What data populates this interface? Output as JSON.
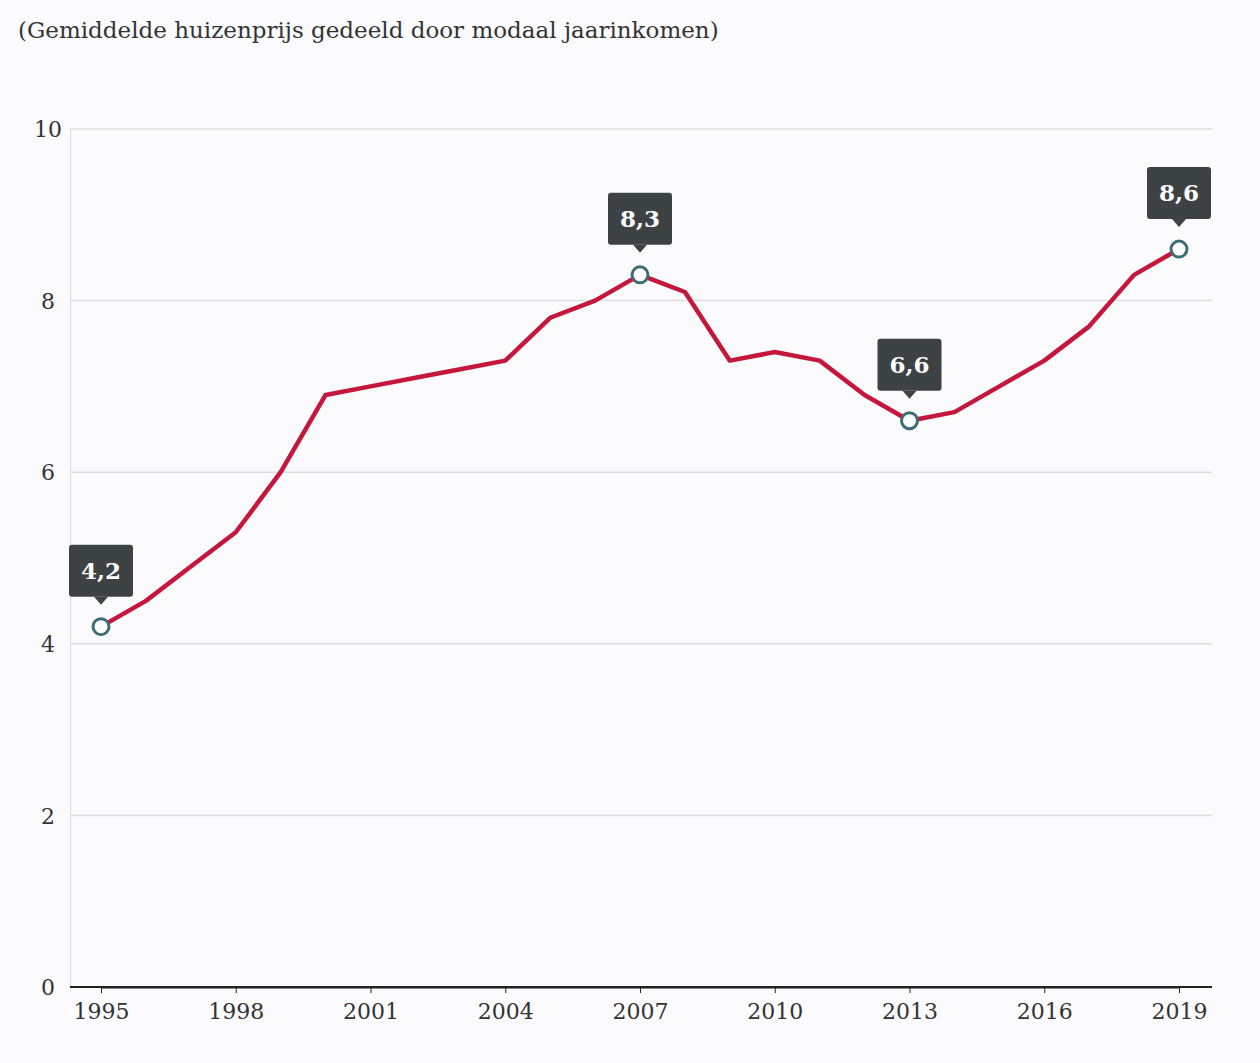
{
  "chart_data": {
    "type": "line",
    "title": "(Gemiddelde huizenprijs gedeeld door modaal jaarinkomen)",
    "x": [
      1995,
      1996,
      1997,
      1998,
      1999,
      2000,
      2001,
      2002,
      2003,
      2004,
      2005,
      2006,
      2007,
      2008,
      2009,
      2010,
      2011,
      2012,
      2013,
      2014,
      2015,
      2016,
      2017,
      2018,
      2019
    ],
    "values": [
      4.2,
      4.5,
      4.9,
      5.3,
      6.0,
      6.9,
      7.0,
      7.1,
      7.2,
      7.3,
      7.8,
      8.0,
      8.3,
      8.1,
      7.3,
      7.4,
      7.3,
      6.9,
      6.6,
      6.7,
      7.0,
      7.3,
      7.7,
      8.3,
      8.6
    ],
    "value_labels": [
      "4,2",
      null,
      null,
      null,
      null,
      null,
      null,
      null,
      null,
      null,
      null,
      null,
      "8,3",
      null,
      null,
      null,
      null,
      null,
      "6,6",
      null,
      null,
      null,
      null,
      null,
      "8,6"
    ],
    "data_labels": true,
    "color": "#c4173b",
    "xlim": [
      1995,
      2019
    ],
    "xticks": [
      1995,
      1998,
      2001,
      2004,
      2007,
      2010,
      2013,
      2016,
      2019
    ],
    "ylim": [
      0,
      10
    ],
    "yticks": [
      0,
      2,
      4,
      6,
      8,
      10
    ],
    "grid": true
  }
}
